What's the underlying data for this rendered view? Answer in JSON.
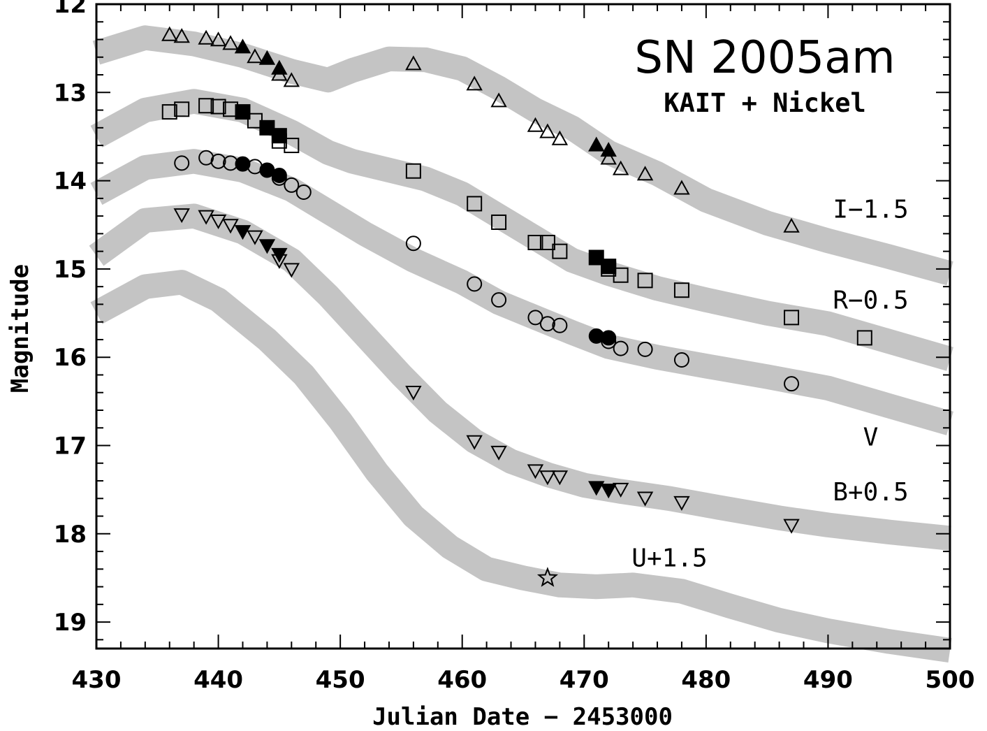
{
  "chart_data": {
    "type": "scatter",
    "title": "SN 2005am",
    "subtitle": "KAIT + Nickel",
    "xlabel": "Julian Date − 2453000",
    "ylabel": "Magnitude",
    "xlim": [
      430,
      500
    ],
    "ylim": [
      19.3,
      12.0
    ],
    "y_inverted": true,
    "grid": false,
    "x_ticks": [
      "430",
      "440",
      "450",
      "460",
      "470",
      "480",
      "490",
      "500"
    ],
    "y_ticks": [
      "12",
      "13",
      "14",
      "15",
      "16",
      "17",
      "18",
      "19"
    ],
    "band_color": "#c4c4c4",
    "marker_color": "#000000",
    "annotations": [
      {
        "text": "I−1.5",
        "x": 493.5,
        "y": 14.42
      },
      {
        "text": "R−0.5",
        "x": 493.5,
        "y": 15.45
      },
      {
        "text": "V",
        "x": 493.5,
        "y": 17.0
      },
      {
        "text": "B+0.5",
        "x": 493.5,
        "y": 17.62
      },
      {
        "text": "U+1.5",
        "x": 477.0,
        "y": 18.37
      }
    ],
    "series": [
      {
        "name": "I−1.5",
        "marker": "triangle-up",
        "template_center": [
          [
            430,
            12.55
          ],
          [
            434,
            12.38
          ],
          [
            438,
            12.45
          ],
          [
            442,
            12.58
          ],
          [
            446,
            12.76
          ],
          [
            449,
            12.86
          ],
          [
            451,
            12.75
          ],
          [
            454,
            12.62
          ],
          [
            457,
            12.63
          ],
          [
            460,
            12.73
          ],
          [
            463,
            12.95
          ],
          [
            466,
            13.2
          ],
          [
            469,
            13.4
          ],
          [
            472,
            13.68
          ],
          [
            476,
            13.92
          ],
          [
            480,
            14.22
          ],
          [
            485,
            14.48
          ],
          [
            490,
            14.68
          ],
          [
            495,
            14.86
          ],
          [
            500,
            15.05
          ]
        ],
        "template_halfwidth": 0.14,
        "open_points": [
          [
            436,
            12.35
          ],
          [
            437,
            12.37
          ],
          [
            439,
            12.39
          ],
          [
            440,
            12.41
          ],
          [
            441,
            12.45
          ],
          [
            443,
            12.6
          ],
          [
            445,
            12.8
          ],
          [
            446,
            12.87
          ],
          [
            456,
            12.68
          ],
          [
            461,
            12.91
          ],
          [
            463,
            13.1
          ],
          [
            466,
            13.38
          ],
          [
            467,
            13.45
          ],
          [
            468,
            13.53
          ],
          [
            472,
            13.75
          ],
          [
            473,
            13.87
          ],
          [
            475,
            13.93
          ],
          [
            478,
            14.09
          ],
          [
            487,
            14.52
          ]
        ],
        "filled_points": [
          [
            442,
            12.49
          ],
          [
            444,
            12.62
          ],
          [
            445,
            12.73
          ],
          [
            471,
            13.6
          ],
          [
            472,
            13.66
          ]
        ]
      },
      {
        "name": "R−0.5",
        "marker": "square",
        "template_center": [
          [
            430,
            13.5
          ],
          [
            434,
            13.2
          ],
          [
            438,
            13.1
          ],
          [
            442,
            13.2
          ],
          [
            446,
            13.45
          ],
          [
            449,
            13.68
          ],
          [
            451,
            13.78
          ],
          [
            454,
            13.88
          ],
          [
            457,
            13.98
          ],
          [
            460,
            14.15
          ],
          [
            463,
            14.4
          ],
          [
            466,
            14.65
          ],
          [
            469,
            14.9
          ],
          [
            472,
            15.05
          ],
          [
            476,
            15.22
          ],
          [
            480,
            15.35
          ],
          [
            485,
            15.5
          ],
          [
            490,
            15.62
          ],
          [
            495,
            15.82
          ],
          [
            500,
            16.02
          ]
        ],
        "template_halfwidth": 0.14,
        "open_points": [
          [
            436,
            13.22
          ],
          [
            437,
            13.19
          ],
          [
            439,
            13.15
          ],
          [
            440,
            13.16
          ],
          [
            441,
            13.19
          ],
          [
            443,
            13.32
          ],
          [
            445,
            13.55
          ],
          [
            446,
            13.6
          ],
          [
            456,
            13.89
          ],
          [
            461,
            14.26
          ],
          [
            463,
            14.47
          ],
          [
            466,
            14.7
          ],
          [
            467,
            14.7
          ],
          [
            468,
            14.8
          ],
          [
            472,
            15.0
          ],
          [
            473,
            15.07
          ],
          [
            475,
            15.13
          ],
          [
            478,
            15.24
          ],
          [
            487,
            15.55
          ],
          [
            493,
            15.78
          ]
        ],
        "filled_points": [
          [
            442,
            13.22
          ],
          [
            444,
            13.4
          ],
          [
            445,
            13.49
          ],
          [
            471,
            14.87
          ],
          [
            472,
            14.97
          ]
        ]
      },
      {
        "name": "V",
        "marker": "circle",
        "template_center": [
          [
            430,
            14.15
          ],
          [
            434,
            13.85
          ],
          [
            438,
            13.78
          ],
          [
            442,
            13.88
          ],
          [
            446,
            14.1
          ],
          [
            449,
            14.35
          ],
          [
            452,
            14.6
          ],
          [
            456,
            14.9
          ],
          [
            460,
            15.15
          ],
          [
            463,
            15.38
          ],
          [
            466,
            15.55
          ],
          [
            469,
            15.72
          ],
          [
            472,
            15.88
          ],
          [
            476,
            16.0
          ],
          [
            480,
            16.1
          ],
          [
            485,
            16.22
          ],
          [
            490,
            16.35
          ],
          [
            495,
            16.55
          ],
          [
            500,
            16.75
          ]
        ],
        "template_halfwidth": 0.14,
        "open_points": [
          [
            437,
            13.8
          ],
          [
            439,
            13.74
          ],
          [
            440,
            13.78
          ],
          [
            441,
            13.8
          ],
          [
            443,
            13.84
          ],
          [
            445,
            13.97
          ],
          [
            446,
            14.05
          ],
          [
            447,
            14.13
          ],
          [
            456,
            14.71
          ],
          [
            461,
            15.17
          ],
          [
            463,
            15.35
          ],
          [
            466,
            15.55
          ],
          [
            467,
            15.62
          ],
          [
            468,
            15.64
          ],
          [
            472,
            15.82
          ],
          [
            473,
            15.9
          ],
          [
            475,
            15.91
          ],
          [
            478,
            16.03
          ],
          [
            487,
            16.3
          ]
        ],
        "filled_points": [
          [
            442,
            13.81
          ],
          [
            444,
            13.88
          ],
          [
            445,
            13.94
          ],
          [
            471,
            15.76
          ],
          [
            472,
            15.78
          ]
        ]
      },
      {
        "name": "B+0.5",
        "marker": "triangle-down",
        "template_center": [
          [
            430,
            14.85
          ],
          [
            434,
            14.45
          ],
          [
            438,
            14.4
          ],
          [
            442,
            14.58
          ],
          [
            446,
            14.9
          ],
          [
            449,
            15.3
          ],
          [
            452,
            15.75
          ],
          [
            455,
            16.2
          ],
          [
            458,
            16.62
          ],
          [
            461,
            16.95
          ],
          [
            464,
            17.18
          ],
          [
            467,
            17.33
          ],
          [
            470,
            17.45
          ],
          [
            473,
            17.52
          ],
          [
            477,
            17.6
          ],
          [
            481,
            17.7
          ],
          [
            486,
            17.82
          ],
          [
            490,
            17.9
          ],
          [
            495,
            17.98
          ],
          [
            500,
            18.05
          ]
        ],
        "template_halfwidth": 0.14,
        "open_points": [
          [
            437,
            14.38
          ],
          [
            439,
            14.4
          ],
          [
            440,
            14.45
          ],
          [
            441,
            14.5
          ],
          [
            443,
            14.63
          ],
          [
            445,
            14.9
          ],
          [
            446,
            15.0
          ],
          [
            456,
            16.39
          ],
          [
            461,
            16.95
          ],
          [
            463,
            17.07
          ],
          [
            466,
            17.28
          ],
          [
            467,
            17.35
          ],
          [
            468,
            17.35
          ],
          [
            473,
            17.49
          ],
          [
            475,
            17.59
          ],
          [
            478,
            17.64
          ],
          [
            487,
            17.9
          ]
        ],
        "filled_points": [
          [
            442,
            14.57
          ],
          [
            444,
            14.73
          ],
          [
            445,
            14.83
          ],
          [
            471,
            17.47
          ],
          [
            472,
            17.5
          ]
        ]
      },
      {
        "name": "U+1.5",
        "marker": "star",
        "template_center": [
          [
            430,
            15.5
          ],
          [
            434,
            15.2
          ],
          [
            437,
            15.15
          ],
          [
            440,
            15.35
          ],
          [
            444,
            15.8
          ],
          [
            447,
            16.2
          ],
          [
            450,
            16.72
          ],
          [
            453,
            17.3
          ],
          [
            456,
            17.8
          ],
          [
            459,
            18.15
          ],
          [
            462,
            18.4
          ],
          [
            465,
            18.5
          ],
          [
            468,
            18.58
          ],
          [
            471,
            18.6
          ],
          [
            474,
            18.58
          ],
          [
            478,
            18.65
          ],
          [
            482,
            18.82
          ],
          [
            486,
            18.98
          ],
          [
            490,
            19.1
          ],
          [
            495,
            19.22
          ],
          [
            500,
            19.32
          ]
        ],
        "template_halfwidth": 0.14,
        "open_points": [
          [
            467,
            18.5
          ]
        ],
        "filled_points": []
      }
    ]
  }
}
